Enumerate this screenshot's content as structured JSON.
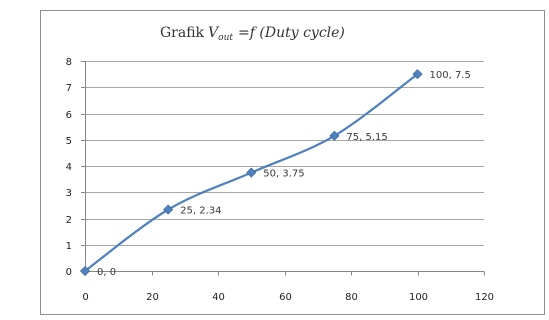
{
  "chart_data": {
    "type": "scatter",
    "title": {
      "lead": "Grafik",
      "var": "V",
      "sub": "out",
      "rhs": "=f (Duty cycle)"
    },
    "xlabel": "",
    "ylabel": "",
    "xlim": [
      0,
      120
    ],
    "ylim": [
      0,
      8
    ],
    "xticks": [
      "0",
      "20",
      "40",
      "60",
      "80",
      "100",
      "120"
    ],
    "yticks": [
      "0",
      "1",
      "2",
      "3",
      "4",
      "5",
      "6",
      "7",
      "8"
    ],
    "grid": "horizontal",
    "legend": "none",
    "series": [
      {
        "x": [
          0,
          25,
          50,
          75,
          100
        ],
        "y": [
          0,
          2.34,
          3.75,
          5.15,
          7.5
        ],
        "labels": [
          "0, 0",
          "25, 2.34",
          "50, 3.75",
          "75, 5.15",
          "100, 7.5"
        ]
      }
    ],
    "colors": {
      "line": "#4f81bd",
      "marker": "#4f81bd"
    }
  }
}
